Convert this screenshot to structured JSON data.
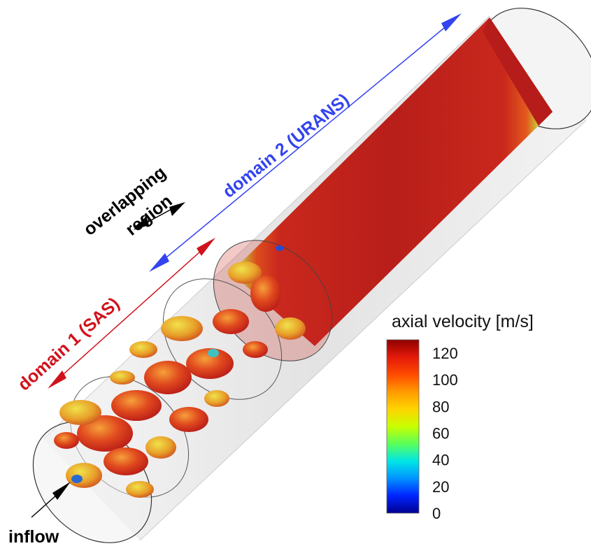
{
  "labels": {
    "domain2": "domain 2 (URANS)",
    "domain1": "domain 1 (SAS)",
    "overlap_line1": "overlapping",
    "overlap_line2": "region",
    "inflow": "inflow"
  },
  "colors": {
    "domain1": "#d0121b",
    "domain2": "#3344ee",
    "overlap": "#000000"
  },
  "colorbar": {
    "title": "axial velocity [m/s]",
    "ticks": [
      "120",
      "100",
      "80",
      "60",
      "40",
      "20",
      "0"
    ],
    "range": [
      0,
      130
    ],
    "colormap": [
      "#00008f",
      "#0024ff",
      "#0093ff",
      "#00e6e6",
      "#5aff5a",
      "#c8ff00",
      "#ffd400",
      "#ff9a00",
      "#ff4a00",
      "#e31a0a",
      "#8f0000"
    ]
  }
}
